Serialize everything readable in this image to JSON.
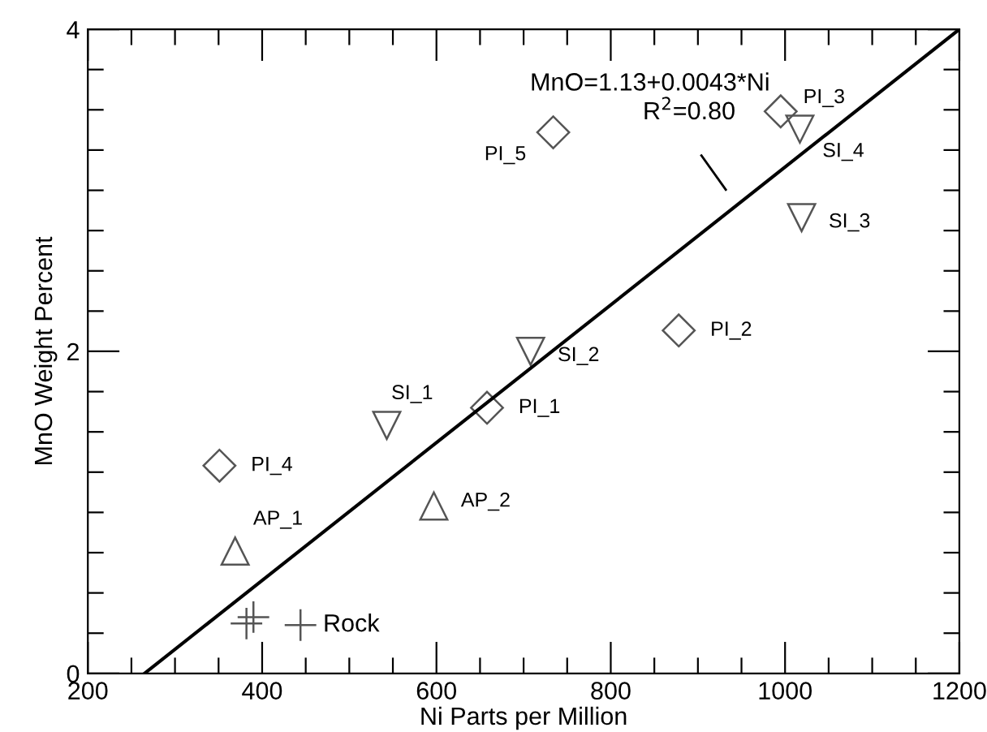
{
  "chart_data": {
    "type": "scatter",
    "xlabel": "Ni Parts per Million",
    "ylabel": "MnO Weight Percent",
    "xlim": [
      200,
      1200
    ],
    "ylim": [
      0,
      4
    ],
    "xticks": [
      200,
      {
        "value": 250,
        "label": null
      },
      {
        "value": 300,
        "label": null
      },
      {
        "value": 350,
        "label": null
      },
      400,
      {
        "value": 450,
        "label": null
      },
      {
        "value": 500,
        "label": null
      },
      {
        "value": 550,
        "label": null
      },
      600,
      {
        "value": 650,
        "label": null
      },
      {
        "value": 700,
        "label": null
      },
      {
        "value": 750,
        "label": null
      },
      800,
      {
        "value": 850,
        "label": null
      },
      {
        "value": 900,
        "label": null
      },
      {
        "value": 950,
        "label": null
      },
      1000,
      {
        "value": 1050,
        "label": null
      },
      {
        "value": 1100,
        "label": null
      },
      {
        "value": 1150,
        "label": null
      },
      1200
    ],
    "yticks": [
      0,
      {
        "value": 0.25,
        "label": null
      },
      {
        "value": 0.5,
        "label": null
      },
      {
        "value": 0.75,
        "label": null
      },
      {
        "value": 1,
        "label": null
      },
      {
        "value": 1.25,
        "label": null
      },
      {
        "value": 1.5,
        "label": null
      },
      {
        "value": 1.75,
        "label": null
      },
      2,
      {
        "value": 2.25,
        "label": null
      },
      {
        "value": 2.5,
        "label": null
      },
      {
        "value": 2.75,
        "label": null
      },
      {
        "value": 3,
        "label": null
      },
      {
        "value": 3.25,
        "label": null
      },
      {
        "value": 3.5,
        "label": null
      },
      {
        "value": 3.75,
        "label": null
      },
      4
    ],
    "grid": false,
    "legend": false,
    "series": [
      {
        "marker": "diamond",
        "color": "#555555",
        "x": [
          658,
          878,
          995,
          351,
          734
        ],
        "values": [
          1.65,
          2.13,
          3.49,
          1.29,
          3.36
        ]
      },
      {
        "marker": "triangle_down",
        "color": "#555555",
        "x": [
          543,
          708,
          1019,
          1017
        ],
        "values": [
          1.54,
          2.0,
          2.83,
          3.38
        ]
      },
      {
        "marker": "triangle",
        "color": "#555555",
        "x": [
          369,
          597
        ],
        "values": [
          0.76,
          1.04
        ]
      },
      {
        "marker": "cross",
        "color": "#555555",
        "name": "Rock",
        "x": [
          382,
          390,
          444
        ],
        "values": [
          0.31,
          0.35,
          0.3
        ]
      },
      {
        "type": "line",
        "color": "#000000",
        "x": [
          265,
          1200
        ],
        "values": [
          0,
          4
        ]
      }
    ],
    "annotations": [
      {
        "text": "PI_1",
        "x": 658,
        "y": 1.65
      },
      {
        "text": "PI_2",
        "x": 878,
        "y": 2.13
      },
      {
        "text": "PI_3",
        "x": 995,
        "y": 3.49
      },
      {
        "text": "PI_4",
        "x": 351,
        "y": 1.29
      },
      {
        "text": "PI_5",
        "x": 734,
        "y": 3.36
      },
      {
        "text": "SI_1",
        "x": 543,
        "y": 1.54
      },
      {
        "text": "SI_2",
        "x": 708,
        "y": 2.0
      },
      {
        "text": "SI_3",
        "x": 1019,
        "y": 2.83
      },
      {
        "text": "SI_4",
        "x": 1017,
        "y": 3.38
      },
      {
        "text": "AP_1",
        "x": 369,
        "y": 0.76
      },
      {
        "text": "AP_2",
        "x": 597,
        "y": 1.04
      },
      "MnO=1.13+0.0043*Ni",
      "R$^{2}$=0.80"
    ]
  }
}
